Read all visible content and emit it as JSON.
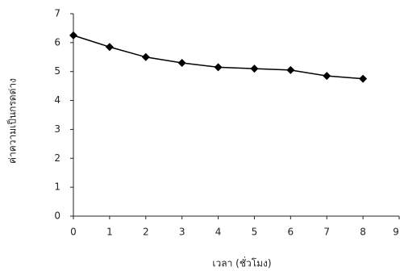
{
  "chart_data": {
    "type": "line",
    "x_label": "เวลา (ชั่วโมง)",
    "y_label": "ค่าความเป็นกรดด่าง",
    "x": [
      0,
      1,
      2,
      3,
      4,
      5,
      6,
      7,
      8
    ],
    "series": [
      {
        "color": "#000000",
        "values": [
          6.25,
          5.85,
          5.5,
          5.3,
          5.15,
          5.1,
          5.05,
          4.85,
          4.75
        ]
      }
    ],
    "xlim": [
      0,
      9
    ],
    "xticks": [
      0,
      1,
      2,
      3,
      4,
      5,
      6,
      7,
      8,
      9
    ],
    "ylim": [
      0,
      7
    ],
    "yticks": [
      0,
      1,
      2,
      3,
      4,
      5,
      6,
      7
    ],
    "grid": false
  }
}
